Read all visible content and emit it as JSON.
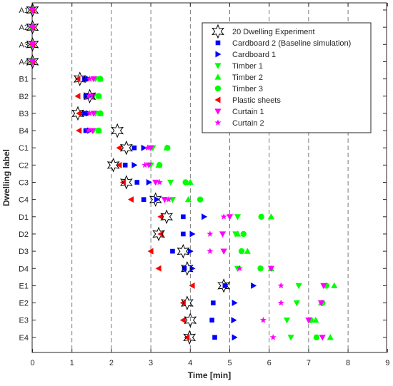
{
  "chart_data": {
    "type": "scatter",
    "xlabel": "Time [min]",
    "ylabel": "Dwelling label",
    "xlim": [
      0,
      9
    ],
    "xticks": [
      "0",
      "1",
      "2",
      "3",
      "4",
      "5",
      "6",
      "7",
      "8",
      "9"
    ],
    "yticks": [
      "A1",
      "A2",
      "A3",
      "A4",
      "B1",
      "B2",
      "B3",
      "B4",
      "C1",
      "C2",
      "C3",
      "C4",
      "D1",
      "D2",
      "D3",
      "D4",
      "E1",
      "E2",
      "E3",
      "E4"
    ],
    "grid": "vertical dashed lines at x = 1 to 8",
    "legend_position": "top-right",
    "series": [
      {
        "name": "20 Dwelling Experiment",
        "marker": "hexagram-open",
        "color": "#000000",
        "values": [
          0,
          0,
          0,
          0,
          1.2,
          1.45,
          1.15,
          2.15,
          2.38,
          2.05,
          2.38,
          3.12,
          3.4,
          3.2,
          3.82,
          3.92,
          4.85,
          3.92,
          4.0,
          3.98
        ]
      },
      {
        "name": "Cardboard 2 (Baseline simulation)",
        "marker": "square",
        "color": "#0000ff",
        "values": [
          0,
          0,
          0,
          0,
          1.32,
          1.35,
          1.32,
          1.35,
          2.58,
          2.35,
          2.65,
          2.82,
          3.82,
          3.82,
          3.55,
          3.85,
          4.88,
          4.58,
          4.55,
          4.62
        ]
      },
      {
        "name": "Cardboard 1",
        "marker": "triangle-right",
        "color": "#0000ff",
        "values": [
          0,
          0,
          0,
          0,
          1.42,
          1.45,
          1.42,
          1.45,
          2.82,
          2.58,
          2.95,
          3.15,
          4.35,
          4.05,
          4.0,
          4.05,
          5.6,
          5.12,
          5.1,
          5.12
        ]
      },
      {
        "name": "Timber 1",
        "marker": "triangle-down",
        "color": "#00ff00",
        "values": [
          0,
          0,
          0,
          0,
          1.6,
          1.55,
          1.6,
          1.55,
          3.05,
          3.0,
          3.5,
          3.55,
          5.2,
          5.15,
          4.85,
          5.2,
          6.75,
          6.7,
          6.45,
          6.55
        ]
      },
      {
        "name": "Timber 2",
        "marker": "triangle-up",
        "color": "#00ff00",
        "values": [
          0,
          0,
          0,
          0,
          1.72,
          1.68,
          1.72,
          1.68,
          3.4,
          3.2,
          4.0,
          3.95,
          6.05,
          5.2,
          5.45,
          6.05,
          7.65,
          7.32,
          7.18,
          7.55
        ]
      },
      {
        "name": "Timber 3",
        "marker": "circle",
        "color": "#00ff00",
        "values": [
          0,
          0,
          0,
          0,
          1.72,
          1.68,
          1.72,
          1.68,
          3.42,
          3.22,
          3.88,
          4.25,
          5.8,
          5.35,
          5.3,
          5.78,
          7.45,
          7.35,
          7.05,
          7.2
        ]
      },
      {
        "name": "Plastic sheets",
        "marker": "triangle-left",
        "color": "#ff0000",
        "values": [
          0,
          0,
          0,
          0,
          1.15,
          1.15,
          1.18,
          1.18,
          2.2,
          2.2,
          2.3,
          2.5,
          3.25,
          3.25,
          3.0,
          3.2,
          4.05,
          3.82,
          3.82,
          3.92
        ]
      },
      {
        "name": "Curtain 1",
        "marker": "triangle-down",
        "color": "#ff00ff",
        "values": [
          0,
          0,
          0,
          0,
          1.55,
          1.52,
          1.55,
          1.52,
          3.0,
          2.95,
          3.12,
          3.35,
          5.0,
          4.82,
          4.85,
          6.05,
          7.38,
          7.32,
          7.0,
          7.35
        ]
      },
      {
        "name": "Curtain 2",
        "marker": "pentagram",
        "color": "#ff00ff",
        "values": [
          0,
          0,
          0,
          0,
          1.45,
          1.42,
          1.45,
          1.42,
          2.92,
          2.85,
          3.22,
          3.45,
          4.85,
          4.5,
          4.5,
          5.25,
          6.3,
          6.3,
          5.85,
          6.1
        ]
      }
    ]
  }
}
